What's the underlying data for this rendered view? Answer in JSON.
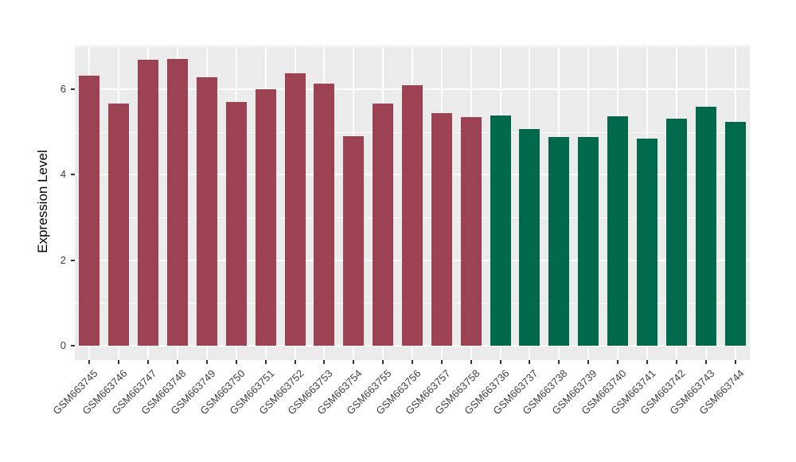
{
  "chart_data": {
    "type": "bar",
    "title": "",
    "xlabel": "",
    "ylabel": "Expression Level",
    "ytick_labels": [
      "0",
      "2",
      "4",
      "6"
    ],
    "yticks": [
      0,
      2,
      4,
      6
    ],
    "yticks_minor": [
      1,
      3,
      5,
      7
    ],
    "ylim": [
      0,
      7.02
    ],
    "grid": "on",
    "legend": "none",
    "panel_bg": "#EBEBEB",
    "grid_color": "#FFFFFF",
    "tick_color": "#333333",
    "text_color": "#404040",
    "group1_color": "#9D4253",
    "group2_color": "#00694C",
    "categories": [
      "GSM663745",
      "GSM663746",
      "GSM663747",
      "GSM663748",
      "GSM663749",
      "GSM663750",
      "GSM663751",
      "GSM663752",
      "GSM663753",
      "GSM663754",
      "GSM663755",
      "GSM663756",
      "GSM663757",
      "GSM663758",
      "GSM663736",
      "GSM663737",
      "GSM663738",
      "GSM663739",
      "GSM663740",
      "GSM663741",
      "GSM663742",
      "GSM663743",
      "GSM663744"
    ],
    "values": [
      6.32,
      5.67,
      6.68,
      6.7,
      6.28,
      5.7,
      6.0,
      6.36,
      6.13,
      4.89,
      5.66,
      6.09,
      5.44,
      5.34,
      5.38,
      5.06,
      4.87,
      4.87,
      5.36,
      4.85,
      5.31,
      5.58,
      5.23
    ],
    "bar_colors": [
      "#9D4253",
      "#9D4253",
      "#9D4253",
      "#9D4253",
      "#9D4253",
      "#9D4253",
      "#9D4253",
      "#9D4253",
      "#9D4253",
      "#9D4253",
      "#9D4253",
      "#9D4253",
      "#9D4253",
      "#9D4253",
      "#00694C",
      "#00694C",
      "#00694C",
      "#00694C",
      "#00694C",
      "#00694C",
      "#00694C",
      "#00694C",
      "#00694C"
    ]
  }
}
